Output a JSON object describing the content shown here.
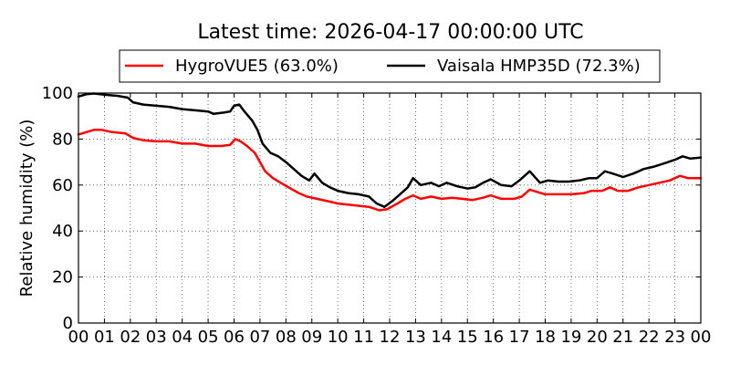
{
  "chart_data": {
    "type": "line",
    "title": "Latest time: 2026-04-17 00:00:00 UTC",
    "ylabel": "Relative humidity (%)",
    "xlabel": "",
    "ylim": [
      0,
      100
    ],
    "xlim": [
      0,
      24
    ],
    "grid": true,
    "legend_position": "top",
    "x_tick_labels": [
      "00",
      "01",
      "02",
      "03",
      "04",
      "05",
      "06",
      "07",
      "08",
      "09",
      "10",
      "11",
      "12",
      "13",
      "14",
      "15",
      "16",
      "17",
      "18",
      "19",
      "20",
      "21",
      "22",
      "23",
      "00"
    ],
    "y_tick_labels": [
      "0",
      "20",
      "40",
      "60",
      "80",
      "100"
    ],
    "y_ticks": [
      0,
      20,
      40,
      60,
      80,
      100
    ],
    "series": [
      {
        "name": "HygroVUE5 (63.0%)",
        "color": "#ff0000",
        "points": [
          [
            0.0,
            82
          ],
          [
            0.3,
            83
          ],
          [
            0.6,
            84
          ],
          [
            0.9,
            84
          ],
          [
            1.3,
            83
          ],
          [
            1.8,
            82.5
          ],
          [
            2.1,
            80.5
          ],
          [
            2.5,
            79.5
          ],
          [
            3.0,
            79
          ],
          [
            3.5,
            79
          ],
          [
            4.0,
            78
          ],
          [
            4.5,
            78
          ],
          [
            5.0,
            77
          ],
          [
            5.5,
            77
          ],
          [
            5.85,
            77.5
          ],
          [
            6.05,
            80
          ],
          [
            6.25,
            79
          ],
          [
            6.5,
            77
          ],
          [
            6.8,
            74
          ],
          [
            7.0,
            70
          ],
          [
            7.2,
            66
          ],
          [
            7.5,
            63
          ],
          [
            7.8,
            61
          ],
          [
            8.1,
            59
          ],
          [
            8.5,
            56.5
          ],
          [
            8.8,
            55
          ],
          [
            9.2,
            54
          ],
          [
            9.6,
            53
          ],
          [
            10.0,
            52
          ],
          [
            10.4,
            51.5
          ],
          [
            10.8,
            51
          ],
          [
            11.2,
            50.5
          ],
          [
            11.6,
            49
          ],
          [
            11.9,
            49.5
          ],
          [
            12.3,
            52
          ],
          [
            12.6,
            54
          ],
          [
            12.9,
            55.5
          ],
          [
            13.2,
            54
          ],
          [
            13.6,
            55
          ],
          [
            14.0,
            54
          ],
          [
            14.4,
            54.5
          ],
          [
            14.8,
            54
          ],
          [
            15.2,
            53.5
          ],
          [
            15.6,
            54.5
          ],
          [
            15.9,
            55.5
          ],
          [
            16.3,
            54
          ],
          [
            16.8,
            54
          ],
          [
            17.1,
            55
          ],
          [
            17.4,
            58
          ],
          [
            17.7,
            57
          ],
          [
            18.0,
            56
          ],
          [
            18.5,
            56
          ],
          [
            19.0,
            56
          ],
          [
            19.5,
            56.5
          ],
          [
            19.8,
            57.5
          ],
          [
            20.2,
            57.5
          ],
          [
            20.5,
            59
          ],
          [
            20.8,
            57.5
          ],
          [
            21.2,
            57.5
          ],
          [
            21.6,
            59
          ],
          [
            22.0,
            60
          ],
          [
            22.4,
            61
          ],
          [
            22.8,
            62
          ],
          [
            23.2,
            64
          ],
          [
            23.5,
            63
          ],
          [
            24.0,
            63
          ]
        ]
      },
      {
        "name": "Vaisala HMP35D (72.3%)",
        "color": "#000000",
        "points": [
          [
            0.0,
            98.5
          ],
          [
            0.3,
            99.5
          ],
          [
            0.6,
            99.8
          ],
          [
            1.0,
            99.3
          ],
          [
            1.5,
            98.8
          ],
          [
            1.9,
            98
          ],
          [
            2.1,
            96
          ],
          [
            2.5,
            95
          ],
          [
            3.0,
            94.5
          ],
          [
            3.5,
            94
          ],
          [
            4.0,
            93
          ],
          [
            4.5,
            92.5
          ],
          [
            5.0,
            92
          ],
          [
            5.2,
            91
          ],
          [
            5.6,
            91.5
          ],
          [
            5.85,
            92
          ],
          [
            6.0,
            94.5
          ],
          [
            6.2,
            95
          ],
          [
            6.4,
            92
          ],
          [
            6.7,
            88
          ],
          [
            6.9,
            84
          ],
          [
            7.1,
            78
          ],
          [
            7.4,
            74
          ],
          [
            7.7,
            72.5
          ],
          [
            8.0,
            70
          ],
          [
            8.3,
            67
          ],
          [
            8.6,
            64
          ],
          [
            8.9,
            62
          ],
          [
            9.1,
            65
          ],
          [
            9.4,
            61
          ],
          [
            9.7,
            59
          ],
          [
            10.0,
            57.5
          ],
          [
            10.4,
            56.5
          ],
          [
            10.8,
            56
          ],
          [
            11.2,
            55
          ],
          [
            11.5,
            52
          ],
          [
            11.8,
            50.5
          ],
          [
            12.1,
            53
          ],
          [
            12.4,
            56
          ],
          [
            12.7,
            59
          ],
          [
            12.9,
            63
          ],
          [
            13.2,
            60
          ],
          [
            13.6,
            61
          ],
          [
            13.9,
            59.5
          ],
          [
            14.2,
            61
          ],
          [
            14.6,
            59.5
          ],
          [
            15.0,
            58.5
          ],
          [
            15.3,
            59
          ],
          [
            15.6,
            61
          ],
          [
            15.9,
            62.5
          ],
          [
            16.3,
            60
          ],
          [
            16.7,
            59.5
          ],
          [
            17.0,
            62
          ],
          [
            17.4,
            66
          ],
          [
            17.8,
            61
          ],
          [
            18.1,
            62
          ],
          [
            18.5,
            61.5
          ],
          [
            18.9,
            61.5
          ],
          [
            19.3,
            62
          ],
          [
            19.7,
            63
          ],
          [
            20.0,
            63
          ],
          [
            20.3,
            66
          ],
          [
            20.6,
            65
          ],
          [
            21.0,
            63.5
          ],
          [
            21.4,
            65
          ],
          [
            21.8,
            67
          ],
          [
            22.2,
            68
          ],
          [
            22.6,
            69.5
          ],
          [
            23.0,
            71
          ],
          [
            23.3,
            72.5
          ],
          [
            23.6,
            71.5
          ],
          [
            24.0,
            72
          ]
        ]
      }
    ]
  }
}
